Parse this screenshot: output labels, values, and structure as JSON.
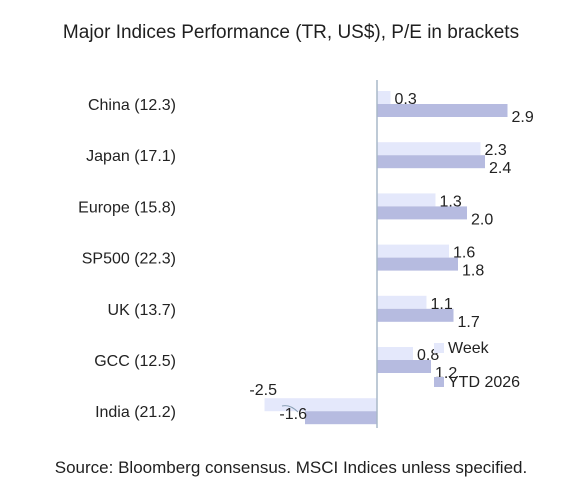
{
  "chart_data": {
    "type": "bar",
    "orientation": "horizontal",
    "title": "Major Indices Performance (TR, US$), P/E in brackets",
    "categories": [
      "China (12.3)",
      "Japan (17.1)",
      "Europe (15.8)",
      "SP500 (22.3)",
      "UK (13.7)",
      "GCC (12.5)",
      "India (21.2)"
    ],
    "series": [
      {
        "name": "Week",
        "values": [
          0.3,
          2.3,
          1.3,
          1.6,
          1.1,
          0.8,
          -2.5
        ],
        "labels": [
          "0.3",
          "2.3",
          "1.3",
          "1.6",
          "1.1",
          "0.8",
          "-2.5"
        ],
        "color": "#e4e8fb"
      },
      {
        "name": "YTD 2026",
        "values": [
          2.9,
          2.4,
          2.0,
          1.8,
          1.7,
          1.2,
          -1.6
        ],
        "labels": [
          "2.9",
          "2.4",
          "2.0",
          "1.8",
          "1.7",
          "1.2",
          "-1.6"
        ],
        "color": "#b6bbe0"
      }
    ],
    "xlim": [
      -2.5,
      3.5
    ],
    "axis_color": "#a9b8c8",
    "grid": false,
    "legend": "right"
  },
  "source": "Source: Bloomberg consensus. MSCI Indices unless specified."
}
